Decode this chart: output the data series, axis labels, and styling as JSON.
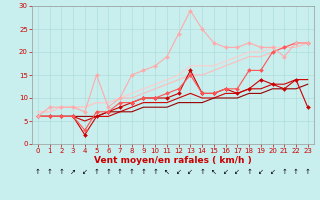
{
  "xlabel": "Vent moyen/en rafales ( km/h )",
  "xlim": [
    -0.5,
    23.5
  ],
  "ylim": [
    0,
    30
  ],
  "xticks": [
    0,
    1,
    2,
    3,
    4,
    5,
    6,
    7,
    8,
    9,
    10,
    11,
    12,
    13,
    14,
    15,
    16,
    17,
    18,
    19,
    20,
    21,
    22,
    23
  ],
  "yticks": [
    0,
    5,
    10,
    15,
    20,
    25,
    30
  ],
  "bg_color": "#c8eeee",
  "grid_color": "#b0dddd",
  "series": [
    {
      "x": [
        0,
        1,
        2,
        3,
        4,
        5,
        6,
        7,
        8,
        9,
        10,
        11,
        12,
        13,
        14,
        15,
        16,
        17,
        18,
        19,
        20,
        21,
        22,
        23
      ],
      "y": [
        6,
        6,
        6,
        6,
        2,
        6,
        7,
        8,
        9,
        10,
        10,
        10,
        11,
        16,
        11,
        11,
        12,
        11,
        12,
        14,
        13,
        12,
        14,
        8
      ],
      "color": "#cc0000",
      "lw": 0.8,
      "marker": "D",
      "ms": 2.0
    },
    {
      "x": [
        0,
        1,
        2,
        3,
        4,
        5,
        6,
        7,
        8,
        9,
        10,
        11,
        12,
        13,
        14,
        15,
        16,
        17,
        18,
        19,
        20,
        21,
        22,
        23
      ],
      "y": [
        6,
        6,
        6,
        6,
        5,
        6,
        6,
        7,
        8,
        9,
        9,
        9,
        10,
        11,
        10,
        10,
        11,
        11,
        12,
        12,
        13,
        13,
        14,
        14
      ],
      "color": "#cc0000",
      "lw": 0.8,
      "marker": null,
      "ms": 0
    },
    {
      "x": [
        0,
        1,
        2,
        3,
        4,
        5,
        6,
        7,
        8,
        9,
        10,
        11,
        12,
        13,
        14,
        15,
        16,
        17,
        18,
        19,
        20,
        21,
        22,
        23
      ],
      "y": [
        6,
        6,
        6,
        6,
        6,
        6,
        7,
        7,
        7,
        8,
        8,
        8,
        9,
        9,
        9,
        10,
        10,
        10,
        11,
        11,
        12,
        12,
        12,
        13
      ],
      "color": "#990000",
      "lw": 0.8,
      "marker": null,
      "ms": 0
    },
    {
      "x": [
        0,
        1,
        2,
        3,
        4,
        5,
        6,
        7,
        8,
        9,
        10,
        11,
        12,
        13,
        14,
        15,
        16,
        17,
        18,
        19,
        20,
        21,
        22,
        23
      ],
      "y": [
        6,
        6,
        6,
        6,
        3,
        7,
        7,
        9,
        9,
        10,
        10,
        11,
        12,
        15,
        11,
        11,
        12,
        12,
        16,
        16,
        20,
        21,
        22,
        22
      ],
      "color": "#ff5555",
      "lw": 0.8,
      "marker": "D",
      "ms": 2.0
    },
    {
      "x": [
        0,
        1,
        2,
        3,
        4,
        5,
        6,
        7,
        8,
        9,
        10,
        11,
        12,
        13,
        14,
        15,
        16,
        17,
        18,
        19,
        20,
        21,
        22,
        23
      ],
      "y": [
        6,
        8,
        8,
        8,
        7,
        15,
        8,
        10,
        15,
        16,
        17,
        19,
        24,
        29,
        25,
        22,
        21,
        21,
        22,
        21,
        21,
        19,
        22,
        22
      ],
      "color": "#ffaaaa",
      "lw": 0.8,
      "marker": "D",
      "ms": 2.0
    },
    {
      "x": [
        0,
        1,
        2,
        3,
        4,
        5,
        6,
        7,
        8,
        9,
        10,
        11,
        12,
        13,
        14,
        15,
        16,
        17,
        18,
        19,
        20,
        21,
        22,
        23
      ],
      "y": [
        7,
        7,
        8,
        8,
        8,
        9,
        9,
        10,
        10,
        11,
        12,
        13,
        14,
        15,
        15,
        16,
        17,
        18,
        19,
        19,
        20,
        21,
        21,
        22
      ],
      "color": "#ffbbbb",
      "lw": 0.8,
      "marker": null,
      "ms": 0
    },
    {
      "x": [
        0,
        1,
        2,
        3,
        4,
        5,
        6,
        7,
        8,
        9,
        10,
        11,
        12,
        13,
        14,
        15,
        16,
        17,
        18,
        19,
        20,
        21,
        22,
        23
      ],
      "y": [
        7,
        7,
        8,
        8,
        8,
        9,
        9,
        10,
        11,
        12,
        13,
        14,
        15,
        17,
        17,
        17,
        18,
        19,
        20,
        20,
        21,
        21,
        22,
        22
      ],
      "color": "#ffcccc",
      "lw": 0.8,
      "marker": null,
      "ms": 0
    }
  ],
  "arrow_chars": [
    "↑",
    "↑",
    "↑",
    "↗",
    "↙",
    "↑",
    "↑",
    "↑",
    "↑",
    "↑",
    "↑",
    "↖",
    "↙",
    "↙",
    "↑",
    "↖",
    "↙",
    "↙",
    "↑",
    "↙",
    "↙",
    "↑",
    "↑",
    "↑"
  ],
  "tick_fontsize": 5,
  "label_fontsize": 6.5
}
